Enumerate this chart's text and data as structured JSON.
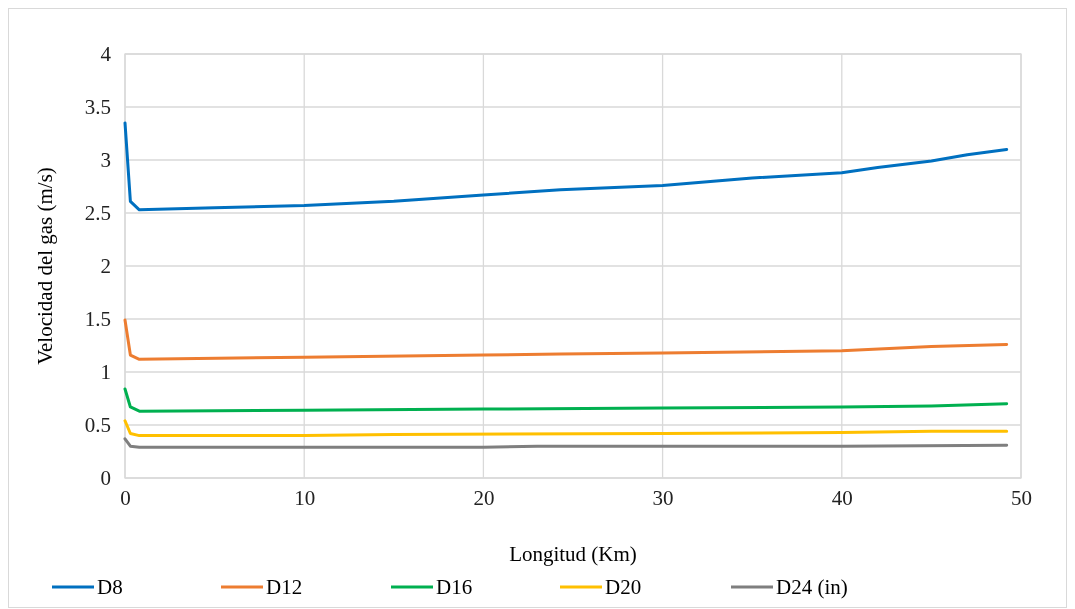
{
  "chart_data": {
    "type": "line",
    "xlabel": "Longitud (Km)",
    "ylabel": "Velocidad del gas (m/s)",
    "xlim": [
      0,
      50
    ],
    "xticks": [
      0,
      10,
      20,
      30,
      40,
      50
    ],
    "ylim": [
      0,
      4
    ],
    "yticks": [
      0,
      0.5,
      1,
      1.5,
      2,
      2.5,
      3,
      3.5,
      4
    ],
    "grid": true,
    "legend": "bottom",
    "marker": "none",
    "line_style": "solid",
    "series": [
      {
        "name": "D8",
        "color": "#0070c0",
        "x": [
          0,
          0.3,
          0.8,
          5,
          10,
          15,
          20,
          24.3,
          30,
          35,
          40,
          42,
          45,
          47,
          49.2
        ],
        "values": [
          3.35,
          2.61,
          2.53,
          2.55,
          2.57,
          2.61,
          2.67,
          2.72,
          2.76,
          2.83,
          2.88,
          2.93,
          2.99,
          3.05,
          3.1
        ]
      },
      {
        "name": "D12",
        "color": "#ed7d31",
        "x": [
          0,
          0.3,
          0.8,
          10,
          20,
          24.3,
          30,
          40,
          45,
          49.2
        ],
        "values": [
          1.49,
          1.16,
          1.12,
          1.14,
          1.16,
          1.17,
          1.18,
          1.2,
          1.24,
          1.26
        ]
      },
      {
        "name": "D16",
        "color": "#00b050",
        "x": [
          0,
          0.3,
          0.8,
          10,
          20,
          30,
          40,
          45,
          49.2
        ],
        "values": [
          0.84,
          0.67,
          0.63,
          0.64,
          0.65,
          0.66,
          0.67,
          0.68,
          0.7
        ]
      },
      {
        "name": "D20",
        "color": "#ffc000",
        "x": [
          0,
          0.3,
          0.8,
          10,
          15,
          30,
          40,
          45,
          49.2
        ],
        "values": [
          0.54,
          0.42,
          0.4,
          0.4,
          0.41,
          0.42,
          0.43,
          0.44,
          0.44
        ]
      },
      {
        "name": "D24 (in)",
        "color": "#7f7f7f",
        "x": [
          0,
          0.3,
          0.8,
          20,
          23,
          40,
          49.2
        ],
        "values": [
          0.37,
          0.3,
          0.29,
          0.29,
          0.3,
          0.3,
          0.31
        ]
      }
    ]
  }
}
